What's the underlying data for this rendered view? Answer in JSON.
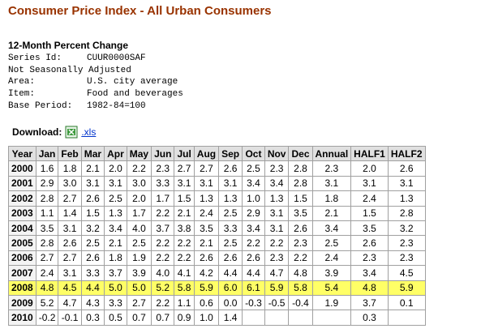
{
  "title": "Consumer Price Index - All Urban Consumers",
  "subtitle": "12-Month Percent Change",
  "meta": [
    {
      "label": "Series Id:",
      "value": "CUUR0000SAF"
    },
    {
      "label": "Not Seasonally Adjusted",
      "value": null
    },
    {
      "label": "Area:",
      "value": "U.S. city average"
    },
    {
      "label": "Item:",
      "value": "Food and beverages"
    },
    {
      "label": "Base Period:",
      "value": "1982-84=100"
    }
  ],
  "download": {
    "label": "Download:",
    "link": ".xls"
  },
  "table": {
    "header": [
      "Year",
      "Jan",
      "Feb",
      "Mar",
      "Apr",
      "May",
      "Jun",
      "Jul",
      "Aug",
      "Sep",
      "Oct",
      "Nov",
      "Dec",
      "Annual",
      "HALF1",
      "HALF2"
    ],
    "highlight_row": 8,
    "rows": [
      [
        "2000",
        "1.6",
        "1.8",
        "2.1",
        "2.0",
        "2.2",
        "2.3",
        "2.7",
        "2.7",
        "2.6",
        "2.5",
        "2.3",
        "2.8",
        "2.3",
        "2.0",
        "2.6"
      ],
      [
        "2001",
        "2.9",
        "3.0",
        "3.1",
        "3.1",
        "3.0",
        "3.3",
        "3.1",
        "3.1",
        "3.1",
        "3.4",
        "3.4",
        "2.8",
        "3.1",
        "3.1",
        "3.1"
      ],
      [
        "2002",
        "2.8",
        "2.7",
        "2.6",
        "2.5",
        "2.0",
        "1.7",
        "1.5",
        "1.3",
        "1.3",
        "1.0",
        "1.3",
        "1.5",
        "1.8",
        "2.4",
        "1.3"
      ],
      [
        "2003",
        "1.1",
        "1.4",
        "1.5",
        "1.3",
        "1.7",
        "2.2",
        "2.1",
        "2.4",
        "2.5",
        "2.9",
        "3.1",
        "3.5",
        "2.1",
        "1.5",
        "2.8"
      ],
      [
        "2004",
        "3.5",
        "3.1",
        "3.2",
        "3.4",
        "4.0",
        "3.7",
        "3.8",
        "3.5",
        "3.3",
        "3.4",
        "3.1",
        "2.6",
        "3.4",
        "3.5",
        "3.2"
      ],
      [
        "2005",
        "2.8",
        "2.6",
        "2.5",
        "2.1",
        "2.5",
        "2.2",
        "2.2",
        "2.1",
        "2.5",
        "2.2",
        "2.2",
        "2.3",
        "2.5",
        "2.6",
        "2.3"
      ],
      [
        "2006",
        "2.7",
        "2.7",
        "2.6",
        "1.8",
        "1.9",
        "2.2",
        "2.2",
        "2.6",
        "2.6",
        "2.6",
        "2.3",
        "2.2",
        "2.4",
        "2.3",
        "2.3"
      ],
      [
        "2007",
        "2.4",
        "3.1",
        "3.3",
        "3.7",
        "3.9",
        "4.0",
        "4.1",
        "4.2",
        "4.4",
        "4.4",
        "4.7",
        "4.8",
        "3.9",
        "3.4",
        "4.5"
      ],
      [
        "2008",
        "4.8",
        "4.5",
        "4.4",
        "5.0",
        "5.0",
        "5.2",
        "5.8",
        "5.9",
        "6.0",
        "6.1",
        "5.9",
        "5.8",
        "5.4",
        "4.8",
        "5.9"
      ],
      [
        "2009",
        "5.2",
        "4.7",
        "4.3",
        "3.3",
        "2.7",
        "2.2",
        "1.1",
        "0.6",
        "0.0",
        "-0.3",
        "-0.5",
        "-0.4",
        "1.9",
        "3.7",
        "0.1"
      ],
      [
        "2010",
        "-0.2",
        "-0.1",
        "0.3",
        "0.5",
        "0.7",
        "0.7",
        "0.9",
        "1.0",
        "1.4",
        null,
        null,
        null,
        null,
        "0.3",
        null
      ]
    ]
  }
}
